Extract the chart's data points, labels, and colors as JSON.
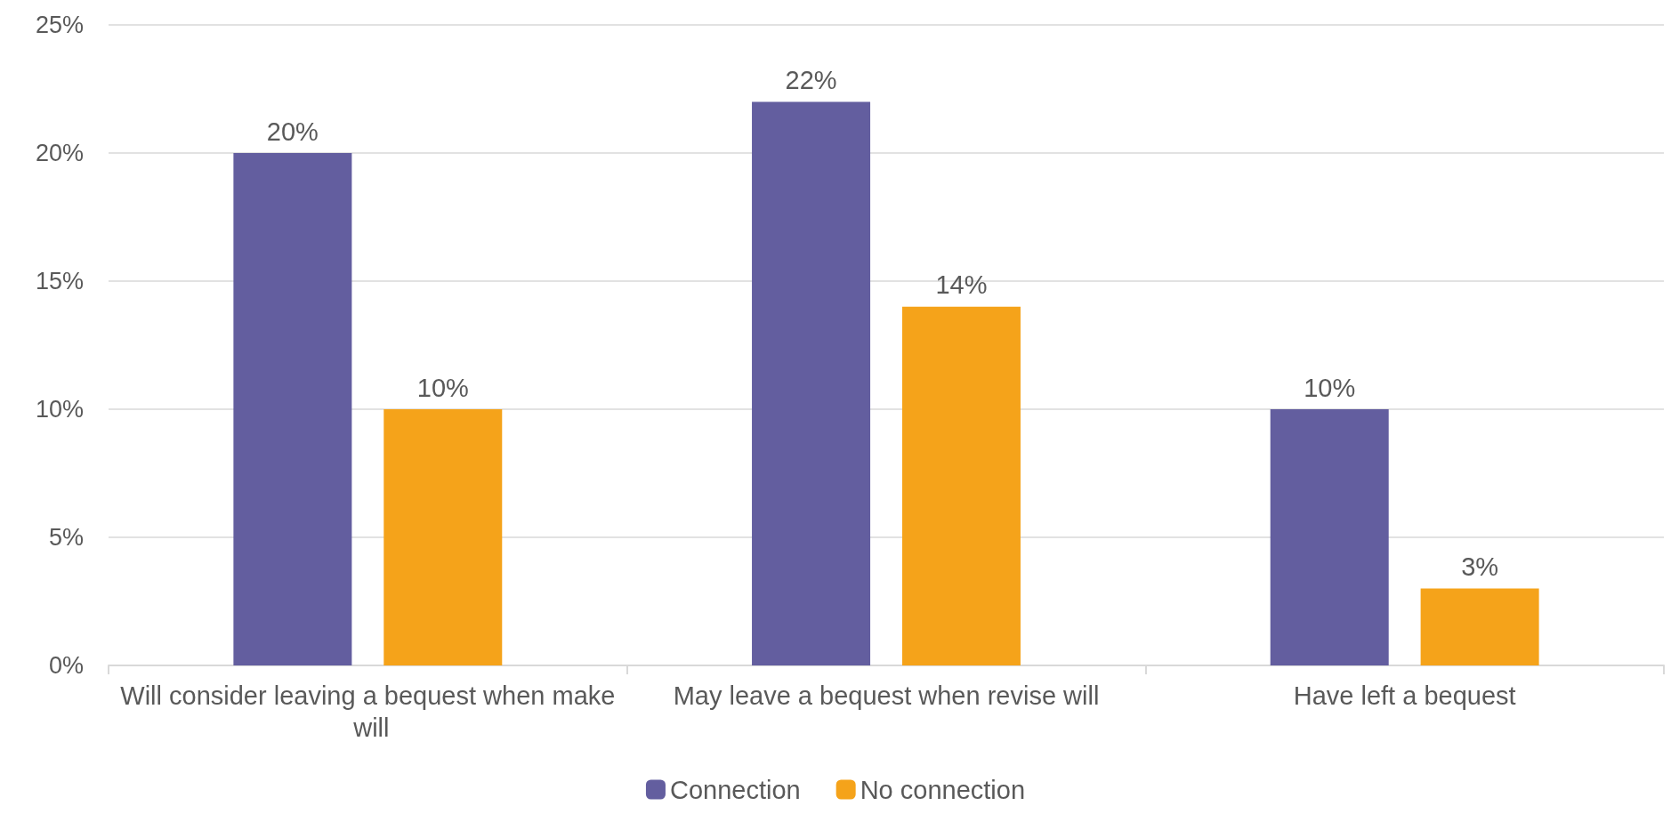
{
  "chart_data": {
    "type": "bar",
    "categories": [
      "Will consider leaving a bequest when make will",
      "May leave a bequest when revise will",
      "Have left a bequest"
    ],
    "series": [
      {
        "name": "Connection",
        "color": "#635e9f",
        "values": [
          20,
          22,
          10
        ],
        "value_labels": [
          "20%",
          "22%",
          "10%"
        ]
      },
      {
        "name": "No connection",
        "color": "#f5a31a",
        "values": [
          10,
          14,
          3
        ],
        "value_labels": [
          "10%",
          "14%",
          "3%"
        ]
      }
    ],
    "ylim": [
      0,
      25
    ],
    "yticks": [
      {
        "value": 0,
        "label": "0%"
      },
      {
        "value": 5,
        "label": "5%"
      },
      {
        "value": 10,
        "label": "10%"
      },
      {
        "value": 15,
        "label": "15%"
      },
      {
        "value": 20,
        "label": "20%"
      },
      {
        "value": 25,
        "label": "25%"
      }
    ],
    "grid": "y",
    "legend": "bottom"
  }
}
